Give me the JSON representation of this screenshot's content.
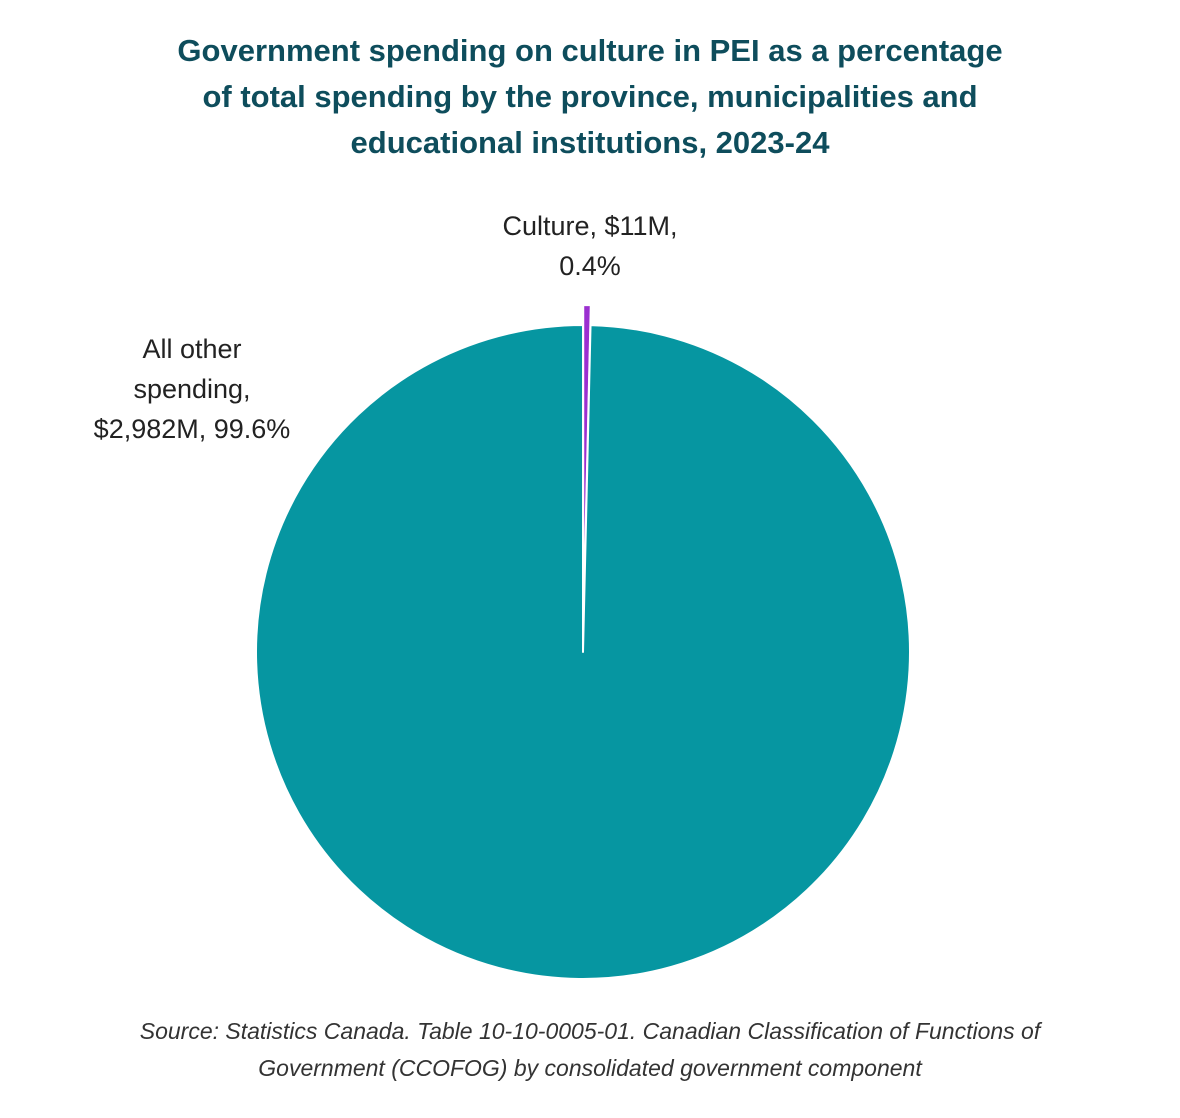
{
  "chart_data": {
    "type": "pie",
    "title": "Government spending on culture in PEI as a percentage of total spending by the province, municipalities and educational institutions, 2023-24",
    "title_lines": [
      "Government spending on culture in PEI as a percentage",
      "of total spending by the province, municipalities and",
      "educational institutions, 2023-24"
    ],
    "slices": [
      {
        "name": "Culture",
        "value": 11,
        "unit": "$M",
        "percent": 0.4,
        "color": "#9b2fd0",
        "exploded": true,
        "label_lines": [
          "Culture, $11M,",
          "0.4%"
        ]
      },
      {
        "name": "All other spending",
        "value": 2982,
        "unit": "$M",
        "percent": 99.6,
        "color": "#0696a1",
        "exploded": false,
        "label_lines": [
          "All other",
          "spending,",
          "$2,982M, 99.6%"
        ]
      }
    ],
    "start_angle": "12 o'clock",
    "direction": "clockwise",
    "source_lines": [
      "Source: Statistics Canada. Table 10-10-0005-01. Canadian Classification of Functions of",
      "Government (CCOFOG) by consolidated government component"
    ]
  }
}
